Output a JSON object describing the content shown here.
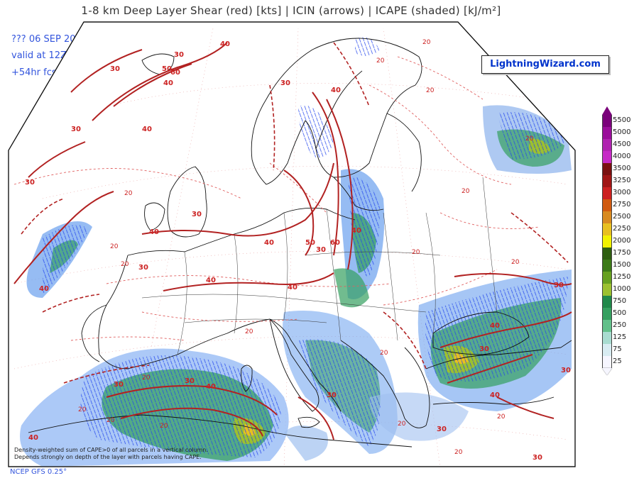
{
  "title": "1-8 km Deep Layer Shear (red) [kts] | ICIN (arrows) | ICAPE (shaded) [kJ/m²]",
  "run": {
    "date_line": "??? 06 SEP 2025",
    "valid_line": "valid at 12Z",
    "fcst_line": "+54hr fcst"
  },
  "brand": "LightningWizard.com",
  "footnote": {
    "line1": "Density-weighted sum of CAPE>0 of all parcels in a vertical column.",
    "line2": "Depends strongly on depth of the layer with parcels having CAPE."
  },
  "model": "NCEP GFS 0.25°",
  "colors": {
    "shear": "#b22222",
    "shear_dashed": "#e06060",
    "coast": "#111111",
    "arrows": "#2244ee",
    "run_text": "#3355dd"
  },
  "colorbar": {
    "levels": [
      "5500",
      "5000",
      "4500",
      "4000",
      "3500",
      "3250",
      "3000",
      "2750",
      "2500",
      "2250",
      "2000",
      "1750",
      "1500",
      "1250",
      "1000",
      "750",
      "500",
      "250",
      "125",
      "75",
      "25"
    ],
    "colors": [
      "#7a007a",
      "#9a0d9a",
      "#b023b0",
      "#c62ac6",
      "#7a1010",
      "#a01515",
      "#cc2020",
      "#d05a10",
      "#d88a20",
      "#e8c020",
      "#f2f200",
      "#2e5e10",
      "#3c7a18",
      "#66a020",
      "#9cc030",
      "#20884a",
      "#35a060",
      "#62c08a",
      "#a8dcd0",
      "#d8ecf2",
      "#f6f6ff"
    ]
  },
  "shear_labels": {
    "thick": [
      "30",
      "30",
      "30",
      "40",
      "40",
      "40",
      "50",
      "30",
      "40",
      "60",
      "30",
      "40",
      "30",
      "50",
      "60",
      "40",
      "40",
      "30",
      "30",
      "40",
      "40",
      "40",
      "30",
      "40",
      "30",
      "30",
      "30",
      "30",
      "30",
      "40",
      "40",
      "30",
      "40",
      "30"
    ],
    "thin": [
      "20",
      "20",
      "20",
      "20",
      "20",
      "20",
      "20",
      "20",
      "20",
      "20",
      "20",
      "20",
      "20",
      "20",
      "20",
      "20",
      "20",
      "20",
      "20"
    ]
  }
}
